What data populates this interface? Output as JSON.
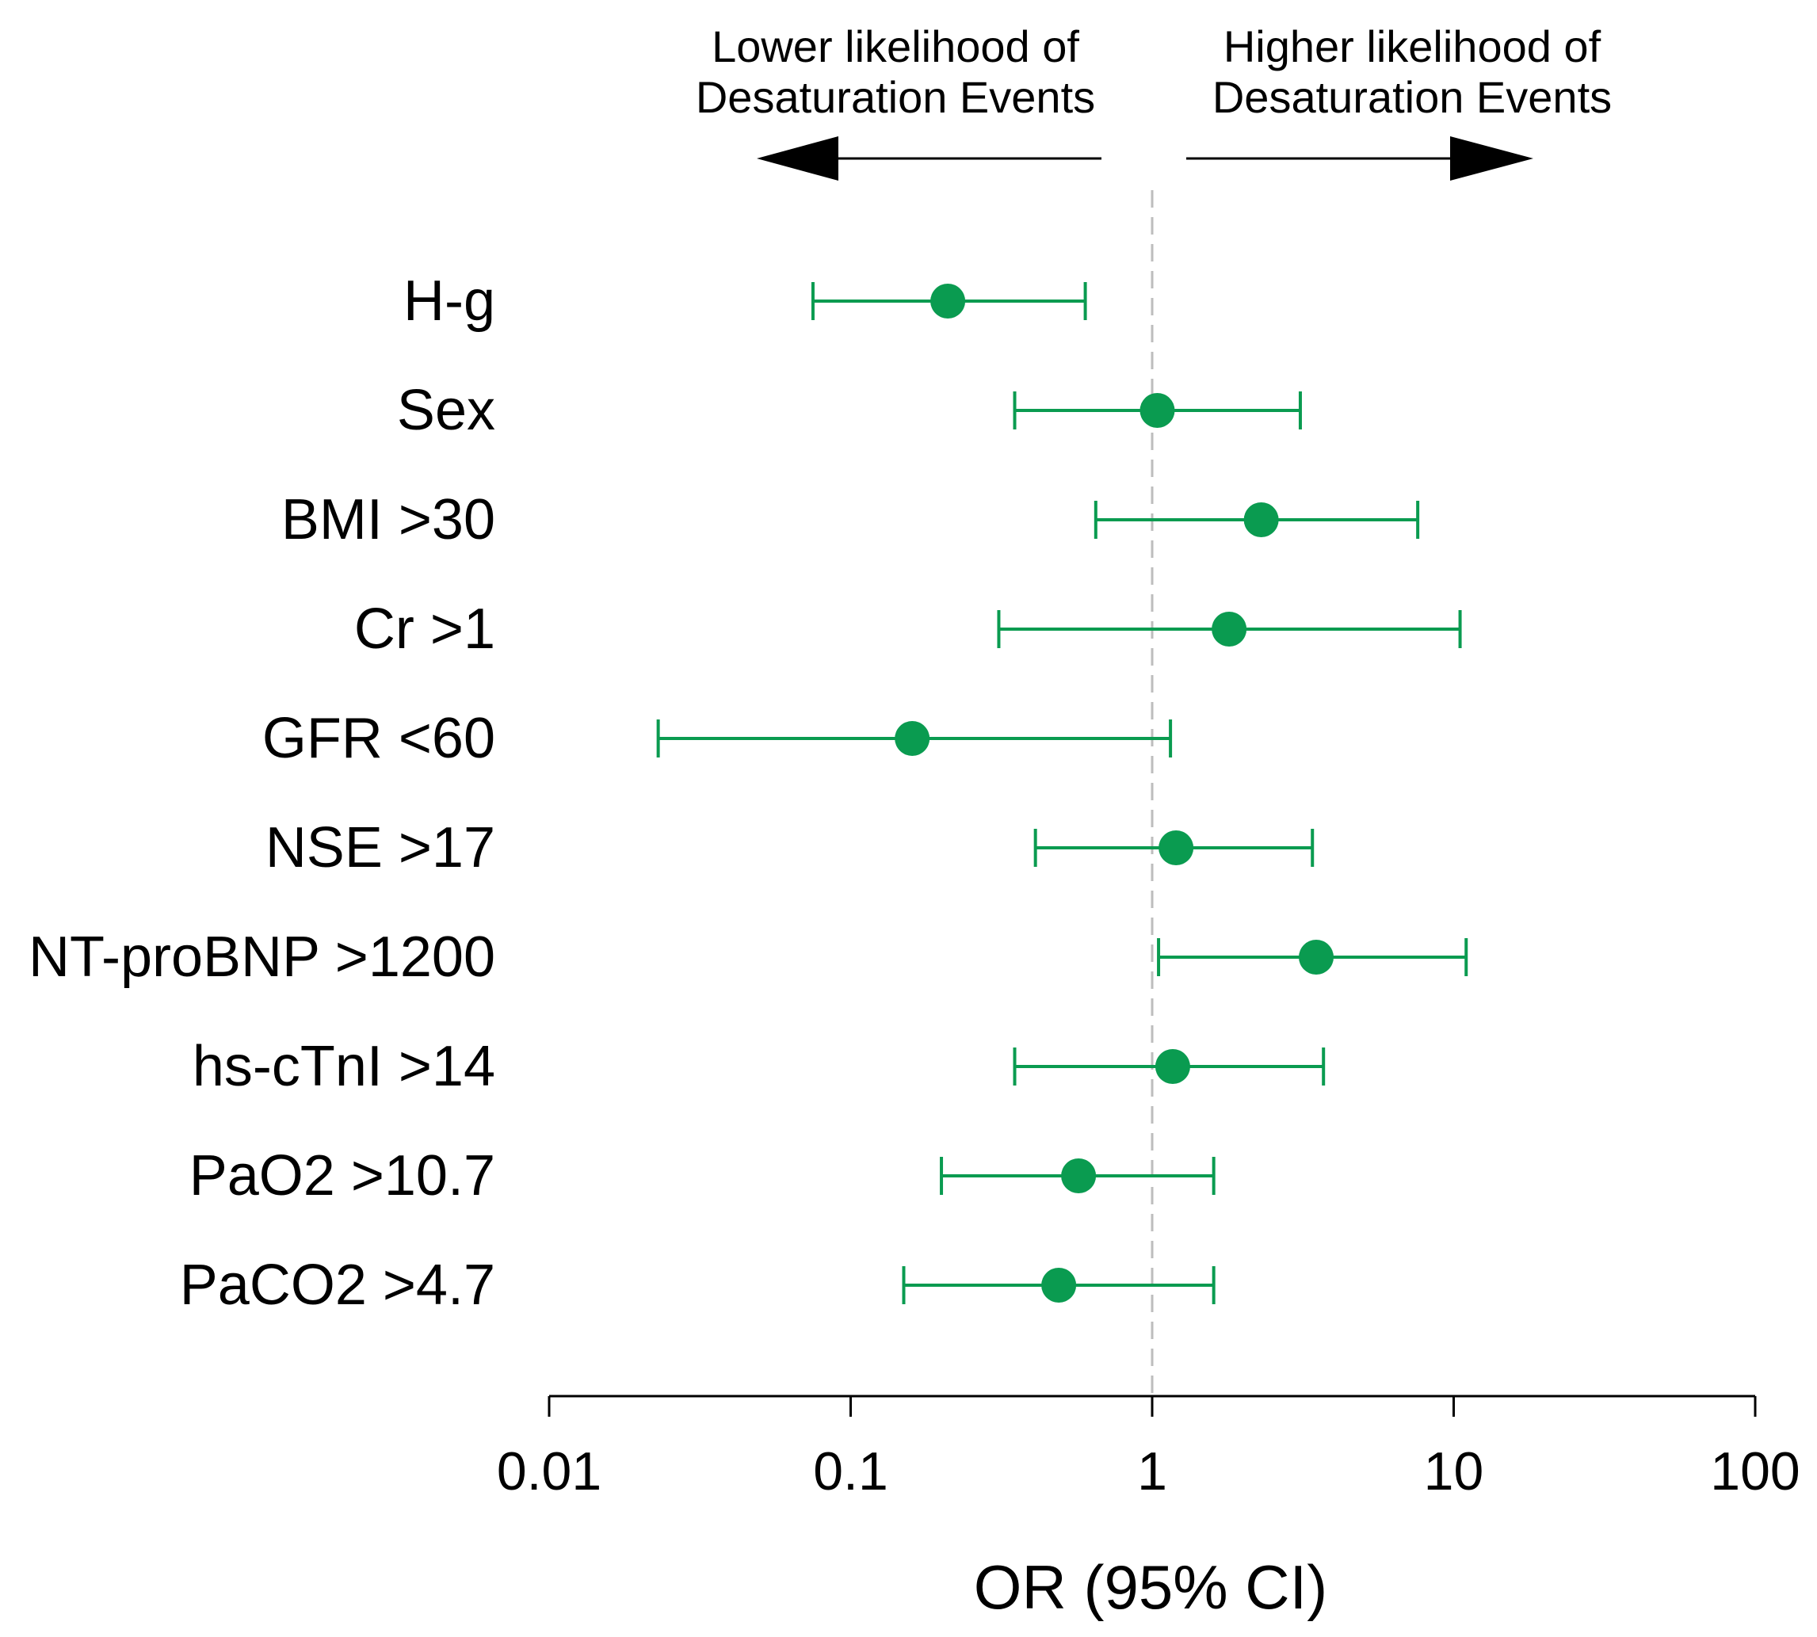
{
  "chart_data": {
    "type": "forest",
    "scale": "log10",
    "xlim": [
      0.01,
      100
    ],
    "xticks": [
      0.01,
      0.1,
      1,
      10,
      100
    ],
    "xtick_labels": [
      "0.01",
      "0.1",
      "1",
      "10",
      "100"
    ],
    "xlabel": "OR (95% CI)",
    "reference_line": 1,
    "direction_labels": {
      "left": [
        "Lower likelihood of",
        "Desaturation Events"
      ],
      "right": [
        "Higher likelihood of",
        "Desaturation Events"
      ]
    },
    "rows": [
      {
        "label": "H-g",
        "or": 0.21,
        "lo": 0.075,
        "hi": 0.6
      },
      {
        "label": "Sex",
        "or": 1.04,
        "lo": 0.35,
        "hi": 3.1
      },
      {
        "label": "BMI >30",
        "or": 2.3,
        "lo": 0.65,
        "hi": 7.6
      },
      {
        "label": "Cr >1",
        "or": 1.8,
        "lo": 0.31,
        "hi": 10.5
      },
      {
        "label": "GFR <60",
        "or": 0.16,
        "lo": 0.023,
        "hi": 1.15
      },
      {
        "label": "NSE >17",
        "or": 1.2,
        "lo": 0.41,
        "hi": 3.4
      },
      {
        "label": "NT-proBNP >1200",
        "or": 3.5,
        "lo": 1.05,
        "hi": 11.0
      },
      {
        "label": "hs-cTnI >14",
        "or": 1.17,
        "lo": 0.35,
        "hi": 3.7
      },
      {
        "label": "PaO2 >10.7",
        "or": 0.57,
        "lo": 0.2,
        "hi": 1.6
      },
      {
        "label": "PaCO2 >4.7",
        "or": 0.49,
        "lo": 0.15,
        "hi": 1.6
      }
    ],
    "colors": {
      "marker": "#0a9b50",
      "axis": "#000000",
      "reference_line": "#bdbdbd",
      "text": "#000000"
    }
  }
}
